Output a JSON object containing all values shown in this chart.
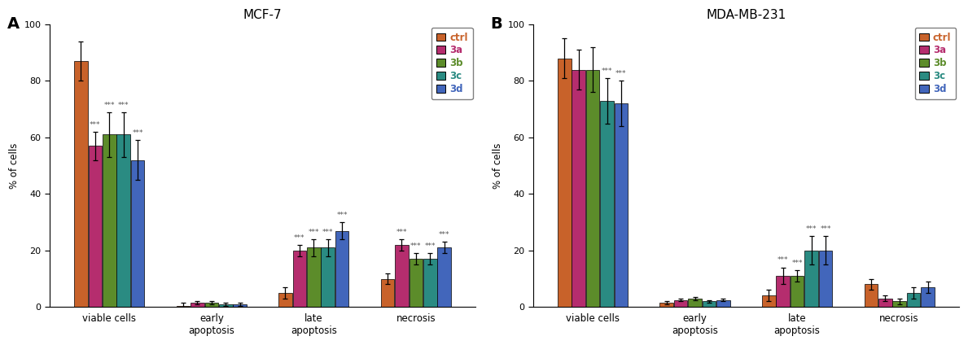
{
  "panel_A": {
    "title": "MCF-7",
    "panel_label": "A",
    "categories": [
      "viable cells",
      "early\napoptosis",
      "late\napoptosis",
      "necrosis"
    ],
    "series_order": [
      "ctrl",
      "3a",
      "3b",
      "3c",
      "3d"
    ],
    "series": {
      "ctrl": {
        "values": [
          87,
          0.5,
          5,
          10
        ],
        "errors": [
          7,
          1.0,
          2,
          2
        ],
        "color": "#C8622A"
      },
      "3a": {
        "values": [
          57,
          1.5,
          20,
          22
        ],
        "errors": [
          5,
          0.5,
          2,
          2
        ],
        "color": "#B52D6E"
      },
      "3b": {
        "values": [
          61,
          1.5,
          21,
          17
        ],
        "errors": [
          8,
          0.5,
          3,
          2
        ],
        "color": "#5C8C2A"
      },
      "3c": {
        "values": [
          61,
          1.0,
          21,
          17
        ],
        "errors": [
          8,
          0.5,
          3,
          2
        ],
        "color": "#2A8B82"
      },
      "3d": {
        "values": [
          52,
          1.0,
          27,
          21
        ],
        "errors": [
          7,
          0.5,
          3,
          2
        ],
        "color": "#4266BB"
      }
    },
    "significance": {
      "viable cells": [
        "***",
        "***",
        "***",
        "***"
      ],
      "early\napoptosis": [
        null,
        null,
        null,
        null
      ],
      "late\napoptosis": [
        "***",
        "***",
        "***",
        "***"
      ],
      "necrosis": [
        "***",
        "***",
        "***",
        "***"
      ]
    },
    "ylabel": "% of cells",
    "ylim": [
      0,
      100
    ]
  },
  "panel_B": {
    "title": "MDA-MB-231",
    "panel_label": "B",
    "categories": [
      "viable cells",
      "early\napoptosis",
      "late\napoptosis",
      "necrosis"
    ],
    "series_order": [
      "ctrl",
      "3a",
      "3b",
      "3c",
      "3d"
    ],
    "series": {
      "ctrl": {
        "values": [
          88,
          1.5,
          4,
          8
        ],
        "errors": [
          7,
          0.5,
          2,
          2
        ],
        "color": "#C8622A"
      },
      "3a": {
        "values": [
          84,
          2.5,
          11,
          3
        ],
        "errors": [
          7,
          0.5,
          3,
          1
        ],
        "color": "#B52D6E"
      },
      "3b": {
        "values": [
          84,
          3.0,
          11,
          2
        ],
        "errors": [
          8,
          0.5,
          2,
          1
        ],
        "color": "#5C8C2A"
      },
      "3c": {
        "values": [
          73,
          2.0,
          20,
          5
        ],
        "errors": [
          8,
          0.5,
          5,
          2
        ],
        "color": "#2A8B82"
      },
      "3d": {
        "values": [
          72,
          2.5,
          20,
          7
        ],
        "errors": [
          8,
          0.5,
          5,
          2
        ],
        "color": "#4266BB"
      }
    },
    "significance": {
      "viable cells": [
        null,
        null,
        "***",
        "***"
      ],
      "early\napoptosis": [
        null,
        null,
        null,
        null
      ],
      "late\napoptosis": [
        "***",
        "***",
        "***",
        "***"
      ],
      "necrosis": [
        null,
        null,
        null,
        null
      ]
    },
    "ylabel": "% of cells",
    "ylim": [
      0,
      100
    ]
  },
  "legend_labels": [
    "ctrl",
    "3a",
    "3b",
    "3c",
    "3d"
  ],
  "legend_colors": [
    "#C8622A",
    "#B52D6E",
    "#5C8C2A",
    "#2A8B82",
    "#4266BB"
  ],
  "bar_width": 0.1,
  "group_centers": [
    0.0,
    0.72,
    1.44,
    2.16
  ],
  "sig_fontsize": 6.5,
  "label_fontsize": 8.5,
  "tick_fontsize": 8,
  "title_fontsize": 11,
  "legend_fontsize": 8.5
}
